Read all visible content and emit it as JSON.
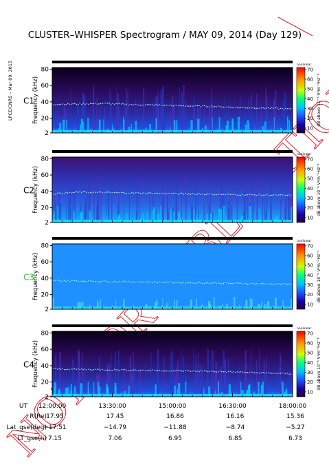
{
  "title": "CLUSTER–WHISPER Spectrogram / MAY 09, 2014 (Day 129)",
  "side_label": "LPCE/CNRS – Mar 09, 2015",
  "watermark": "NOT FOR PUBLICATION",
  "chart_data": {
    "type": "heatmap",
    "panels": [
      {
        "id": "C1",
        "label": "C1",
        "label_color": "#000000",
        "ylabel": "Frequency (kHz)",
        "colorbar_top": "nonlinear",
        "plasma_line_khz": [
          37,
          37.5,
          38,
          36.5,
          36,
          35,
          34.5,
          33,
          32.5,
          31
        ]
      },
      {
        "id": "C2",
        "label": "C2",
        "label_color": "#000000",
        "ylabel": "Frequency (kHz)",
        "colorbar_top": "nonlinear",
        "plasma_line_khz": [
          37,
          39,
          38.5,
          38,
          37.5,
          37,
          36.5,
          36,
          35.5,
          35
        ]
      },
      {
        "id": "C3",
        "label": "C3",
        "label_color": "#22cc22",
        "ylabel": "Frequency (kHz)",
        "colorbar_top": "nonlinear",
        "plasma_line_khz": [
          37,
          36.5,
          36,
          35.5,
          35,
          34.5,
          34,
          33.5,
          33,
          32.5
        ]
      },
      {
        "id": "C4",
        "label": "C4",
        "label_color": "#000000",
        "ylabel": "Frequency (kHz)",
        "colorbar_top": "nonlinear",
        "plasma_line_khz": [
          36,
          35.5,
          35,
          34.5,
          34,
          33.5,
          33,
          32,
          31,
          30
        ]
      }
    ],
    "y_ticks": [
      2,
      20,
      40,
      60,
      80
    ],
    "ylim": [
      2,
      82
    ],
    "colorbar": {
      "label": "dB above 10⁻⁸ V²m⁻²Hz⁻¹",
      "ticks": [
        10,
        20,
        30,
        40,
        50,
        60,
        70
      ],
      "range": [
        5,
        72
      ]
    },
    "x_label": "UT",
    "x_ticks": [
      "12:00:00",
      "13:30:00",
      "15:00:00",
      "16:30:00",
      "18:00:00"
    ],
    "ephemeris": [
      {
        "label": "R(Re)",
        "values": [
          "17.95",
          "17.45",
          "16.86",
          "16.16",
          "15.36"
        ]
      },
      {
        "label": "Lat_gse(deg)",
        "values": [
          "−17.51",
          "−14.79",
          "−11.88",
          "−8.74",
          "−5.27"
        ]
      },
      {
        "label": "LT_gse(h)",
        "values": [
          "7.15",
          "7.06",
          "6.95",
          "6.85",
          "6.73"
        ]
      }
    ],
    "colors": {
      "panel_c3_bg": "#1e90ff",
      "axis": "#000000"
    }
  }
}
